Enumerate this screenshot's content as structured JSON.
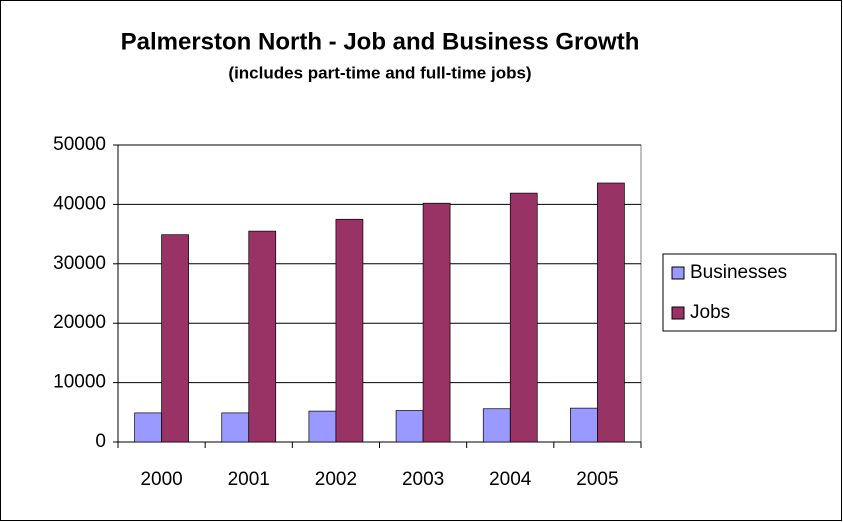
{
  "chart_data": {
    "type": "bar",
    "title": "Palmerston North - Job and Business Growth",
    "subtitle": "(includes part-time and full-time jobs)",
    "categories": [
      "2000",
      "2001",
      "2002",
      "2003",
      "2004",
      "2005"
    ],
    "series": [
      {
        "name": "Businesses",
        "color": "#9999ff",
        "values": [
          4900,
          4900,
          5200,
          5300,
          5600,
          5700
        ]
      },
      {
        "name": "Jobs",
        "color": "#993366",
        "values": [
          34900,
          35500,
          37500,
          40200,
          41900,
          43600
        ]
      }
    ],
    "ylim": [
      0,
      50000
    ],
    "yticks": [
      0,
      10000,
      20000,
      30000,
      40000,
      50000
    ],
    "grid": true,
    "legend": "right"
  }
}
